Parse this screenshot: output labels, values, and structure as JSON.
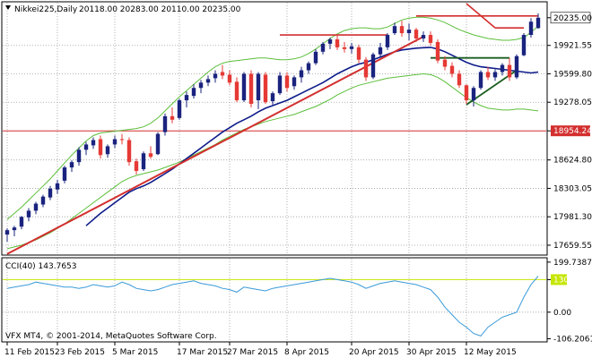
{
  "chart_data": [
    {
      "type": "candlestick",
      "title": "Nikkei225,Daily",
      "ohlc_header": "20118.00 20283.00 20110.00 20235.00",
      "last_price_label": "20235.00",
      "ylim": [
        17568,
        20395
      ],
      "yticks": [
        {
          "value": 20235.0,
          "label": "20235.00"
        },
        {
          "value": 19921.55,
          "label": "19921.55"
        },
        {
          "value": 19599.8,
          "label": "19599.80"
        },
        {
          "value": 19278.05,
          "label": "19278.05"
        },
        {
          "value": 18954.24,
          "label": "18954.24"
        },
        {
          "value": 18624.8,
          "label": "18624.80"
        },
        {
          "value": 18303.05,
          "label": "18303.05"
        },
        {
          "value": 17981.3,
          "label": "17981.30"
        },
        {
          "value": 17659.55,
          "label": "17659.55"
        }
      ],
      "horizontal_level": 18954.24,
      "colors": {
        "up": "#1a237e",
        "down": "#e53935",
        "ma": "#0d1b8a",
        "bands": "#5cbf3a",
        "trend": "#d32f2f",
        "level": "#d32f2f",
        "label_bg": "#d32f2f"
      },
      "candles": [
        [
          17780,
          17850,
          17700,
          17830
        ],
        [
          17830,
          17880,
          17760,
          17860
        ],
        [
          17870,
          17990,
          17840,
          17980
        ],
        [
          17975,
          18080,
          17930,
          18050
        ],
        [
          18050,
          18150,
          18010,
          18130
        ],
        [
          18120,
          18230,
          18090,
          18210
        ],
        [
          18200,
          18330,
          18170,
          18300
        ],
        [
          18290,
          18400,
          18240,
          18360
        ],
        [
          18390,
          18560,
          18360,
          18540
        ],
        [
          18540,
          18620,
          18490,
          18600
        ],
        [
          18600,
          18770,
          18560,
          18740
        ],
        [
          18740,
          18830,
          18680,
          18800
        ],
        [
          18790,
          18880,
          18750,
          18850
        ],
        [
          18860,
          18900,
          18640,
          18680
        ],
        [
          18690,
          18800,
          18650,
          18780
        ],
        [
          18800,
          18900,
          18760,
          18860
        ],
        [
          18860,
          18920,
          18800,
          18850
        ],
        [
          18850,
          18880,
          18560,
          18600
        ],
        [
          18610,
          18640,
          18460,
          18500
        ],
        [
          18520,
          18720,
          18500,
          18700
        ],
        [
          18700,
          18780,
          18640,
          18660
        ],
        [
          18690,
          18940,
          18680,
          18920
        ],
        [
          18940,
          19150,
          18900,
          19120
        ],
        [
          19120,
          19220,
          19040,
          19080
        ],
        [
          19100,
          19320,
          19080,
          19300
        ],
        [
          19300,
          19400,
          19220,
          19360
        ],
        [
          19350,
          19480,
          19320,
          19440
        ],
        [
          19440,
          19530,
          19380,
          19500
        ],
        [
          19500,
          19580,
          19460,
          19540
        ],
        [
          19550,
          19640,
          19500,
          19600
        ],
        [
          19620,
          19700,
          19540,
          19580
        ],
        [
          19590,
          19640,
          19470,
          19500
        ],
        [
          19510,
          19560,
          19280,
          19300
        ],
        [
          19300,
          19620,
          19280,
          19600
        ],
        [
          19600,
          19640,
          19220,
          19260
        ],
        [
          19300,
          19620,
          19200,
          19600
        ],
        [
          19590,
          19620,
          19260,
          19280
        ],
        [
          19290,
          19400,
          19250,
          19380
        ],
        [
          19380,
          19620,
          19360,
          19580
        ],
        [
          19580,
          19620,
          19400,
          19440
        ],
        [
          19460,
          19580,
          19420,
          19560
        ],
        [
          19560,
          19680,
          19500,
          19640
        ],
        [
          19640,
          19740,
          19600,
          19720
        ],
        [
          19720,
          19880,
          19700,
          19850
        ],
        [
          19850,
          19960,
          19820,
          19940
        ],
        [
          19940,
          20010,
          19880,
          19990
        ],
        [
          19990,
          20030,
          19870,
          19900
        ],
        [
          19900,
          19960,
          19840,
          19880
        ],
        [
          19880,
          19950,
          19830,
          19910
        ],
        [
          19900,
          19930,
          19720,
          19760
        ],
        [
          19760,
          19790,
          19520,
          19560
        ],
        [
          19560,
          19840,
          19540,
          19820
        ],
        [
          19820,
          19950,
          19780,
          19900
        ],
        [
          19900,
          20060,
          19870,
          20040
        ],
        [
          20060,
          20180,
          20040,
          20140
        ],
        [
          20140,
          20200,
          20020,
          20060
        ],
        [
          20060,
          20170,
          19980,
          20100
        ],
        [
          20100,
          20120,
          19960,
          20000
        ],
        [
          20000,
          20080,
          19960,
          20040
        ],
        [
          20040,
          20080,
          19920,
          19950
        ],
        [
          19960,
          19990,
          19720,
          19750
        ],
        [
          19760,
          19800,
          19640,
          19680
        ],
        [
          19690,
          19730,
          19560,
          19600
        ],
        [
          19600,
          19640,
          19440,
          19470
        ],
        [
          19470,
          19480,
          19260,
          19300
        ],
        [
          19300,
          19460,
          19230,
          19440
        ],
        [
          19440,
          19640,
          19420,
          19620
        ],
        [
          19620,
          19680,
          19530,
          19560
        ],
        [
          19560,
          19650,
          19520,
          19620
        ],
        [
          19620,
          19720,
          19580,
          19700
        ],
        [
          19700,
          19780,
          19520,
          19560
        ],
        [
          19560,
          19820,
          19540,
          19800
        ],
        [
          19810,
          20060,
          19800,
          20040
        ],
        [
          20040,
          20230,
          20010,
          20190
        ],
        [
          20118,
          20283,
          20110,
          20235
        ]
      ],
      "ma": [
        null,
        null,
        null,
        null,
        null,
        null,
        null,
        null,
        null,
        null,
        null,
        17880,
        17950,
        18020,
        18080,
        18140,
        18200,
        18260,
        18300,
        18330,
        18370,
        18420,
        18470,
        18520,
        18580,
        18640,
        18700,
        18760,
        18820,
        18880,
        18940,
        18990,
        19040,
        19080,
        19120,
        19170,
        19210,
        19240,
        19270,
        19300,
        19340,
        19380,
        19420,
        19460,
        19500,
        19550,
        19600,
        19640,
        19680,
        19710,
        19730,
        19760,
        19790,
        19820,
        19850,
        19870,
        19880,
        19890,
        19895,
        19900,
        19880,
        19850,
        19810,
        19770,
        19730,
        19700,
        19680,
        19670,
        19660,
        19650,
        19640,
        19630,
        19620,
        19610,
        19620
      ],
      "upper_band": [
        17950,
        18020,
        18090,
        18170,
        18250,
        18330,
        18410,
        18500,
        18590,
        18680,
        18760,
        18840,
        18900,
        18930,
        18940,
        18950,
        18960,
        18970,
        18980,
        19000,
        19040,
        19100,
        19180,
        19260,
        19340,
        19410,
        19480,
        19550,
        19620,
        19680,
        19720,
        19740,
        19750,
        19760,
        19770,
        19780,
        19780,
        19770,
        19760,
        19760,
        19770,
        19790,
        19830,
        19880,
        19940,
        20000,
        20050,
        20090,
        20110,
        20120,
        20120,
        20110,
        20110,
        20130,
        20170,
        20210,
        20230,
        20240,
        20240,
        20230,
        20210,
        20180,
        20140,
        20100,
        20070,
        20040,
        20020,
        20000,
        19990,
        19980,
        19980,
        19990,
        20010,
        20070,
        20140
      ],
      "lower_band": [
        17620,
        17640,
        17660,
        17690,
        17720,
        17760,
        17800,
        17850,
        17900,
        17960,
        18020,
        18080,
        18140,
        18200,
        18260,
        18320,
        18380,
        18420,
        18450,
        18470,
        18490,
        18510,
        18540,
        18570,
        18600,
        18640,
        18680,
        18720,
        18760,
        18800,
        18850,
        18890,
        18930,
        18970,
        19000,
        19030,
        19060,
        19080,
        19100,
        19120,
        19140,
        19170,
        19200,
        19230,
        19270,
        19310,
        19360,
        19400,
        19440,
        19470,
        19490,
        19510,
        19530,
        19550,
        19560,
        19570,
        19580,
        19590,
        19600,
        19590,
        19560,
        19510,
        19450,
        19390,
        19330,
        19280,
        19240,
        19210,
        19200,
        19190,
        19190,
        19200,
        19200,
        19190,
        19180
      ],
      "x_labels": [
        {
          "index": 0,
          "label": "11 Feb 2015"
        },
        {
          "index": 7,
          "label": "23 Feb 2015"
        },
        {
          "index": 15,
          "label": "5 Mar 2015"
        },
        {
          "index": 24,
          "label": "17 Mar 2015"
        },
        {
          "index": 31,
          "label": "27 Mar 2015"
        },
        {
          "index": 39,
          "label": "8 Apr 2015"
        },
        {
          "index": 48,
          "label": "20 Apr 2015"
        },
        {
          "index": 56,
          "label": "30 Apr 2015"
        },
        {
          "index": 64,
          "label": "12 May 2015"
        }
      ]
    },
    {
      "type": "line",
      "title": "CCI(40) 143.7653",
      "ylim": [
        -115,
        210
      ],
      "yticks": [
        {
          "value": 199.7387,
          "label": "199.7387"
        },
        {
          "value": 130,
          "label": "130"
        },
        {
          "value": 0.0,
          "label": "0.00"
        },
        {
          "value": -106.2061,
          "label": "-106.2061"
        }
      ],
      "level": 130,
      "colors": {
        "line": "#3a9ad9",
        "level": "#c6e600"
      },
      "values": [
        95,
        100,
        105,
        110,
        120,
        115,
        110,
        105,
        100,
        100,
        95,
        100,
        110,
        105,
        100,
        105,
        120,
        110,
        95,
        90,
        85,
        90,
        100,
        110,
        115,
        120,
        125,
        115,
        110,
        105,
        95,
        90,
        80,
        100,
        95,
        90,
        85,
        95,
        100,
        105,
        110,
        115,
        120,
        125,
        130,
        135,
        130,
        125,
        120,
        110,
        95,
        105,
        115,
        120,
        125,
        120,
        115,
        110,
        100,
        90,
        60,
        20,
        -10,
        -40,
        -60,
        -85,
        -95,
        -60,
        -40,
        -20,
        -10,
        0,
        60,
        110,
        144
      ]
    },
    {
      "type": "watermark",
      "text": "VFX MT4, © 2001-2014, MetaQuotes Software Corp."
    }
  ]
}
